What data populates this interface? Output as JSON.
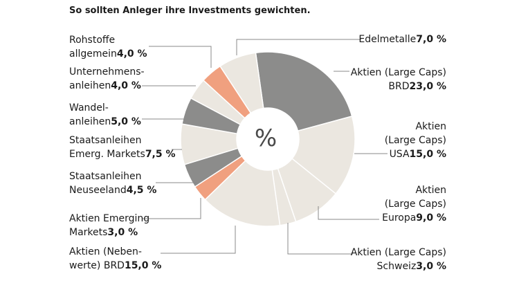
{
  "chart_data": {
    "type": "donut",
    "subtitle": "So sollten Anleger ihre Investments gewichten.",
    "center_label": "%",
    "categories": [
      [
        "Aktien (Large Caps)",
        "BRD"
      ],
      [
        "Aktien",
        "(Large Caps)",
        "USA"
      ],
      [
        "Aktien",
        "(Large Caps)",
        "Europa"
      ],
      [
        "Aktien (Large Caps)",
        "Schweiz"
      ],
      [
        "Aktien (Neben-",
        "werte) BRD"
      ],
      [
        "Aktien Emerging",
        "Markets"
      ],
      [
        "Staatsanleihen",
        "Neuseeland"
      ],
      [
        "Staatsanleihen",
        "Emerg. Markets"
      ],
      [
        "Wandel-",
        "anleihen"
      ],
      [
        "Unternehmens-",
        "anleihen"
      ],
      [
        "Rohstoffe",
        "allgemein"
      ],
      [
        "Edelmetalle"
      ]
    ],
    "values": [
      23,
      15,
      9,
      3,
      15,
      3,
      4.5,
      7.5,
      5,
      4,
      4,
      7
    ],
    "value_labels": [
      "23,0 %",
      "15,0 %",
      "9,0 %",
      "3,0 %",
      "15,0 %",
      "3,0 %",
      "4,5 %",
      "7,5 %",
      "5,0 %",
      "4,0 %",
      "4,0 %",
      "7,0 %"
    ],
    "colors": [
      "#8c8c8b",
      "#ebe7e0",
      "#ebe7e0",
      "#ebe7e0",
      "#ebe7e0",
      "#f0a07f",
      "#8c8c8b",
      "#ebe7e0",
      "#8c8c8b",
      "#ebe7e0",
      "#f0a07f",
      "#ebe7e0"
    ]
  }
}
